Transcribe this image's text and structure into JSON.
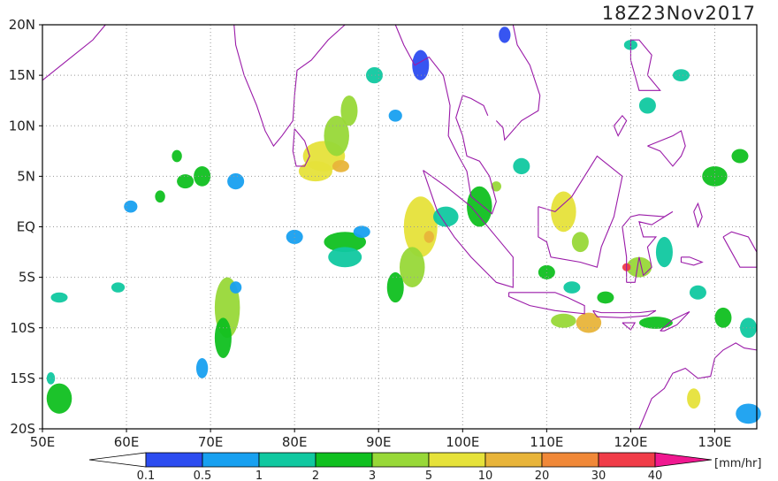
{
  "title": "18Z23Nov2017",
  "map": {
    "lat_labels": [
      "20N",
      "15N",
      "10N",
      "5N",
      "EQ",
      "5S",
      "10S",
      "15S",
      "20S"
    ],
    "lon_labels": [
      "50E",
      "60E",
      "70E",
      "80E",
      "90E",
      "100E",
      "110E",
      "120E",
      "130E"
    ]
  },
  "colorbar": {
    "labels": [
      "0.1",
      "0.5",
      "1",
      "2",
      "3",
      "5",
      "10",
      "20",
      "30",
      "40"
    ],
    "colors": [
      "#2c4cf0",
      "#18a0f0",
      "#10c8a0",
      "#10c020",
      "#98d838",
      "#e6e23a",
      "#e8b43a",
      "#f08838",
      "#f03c48"
    ],
    "under_color": "#ffffff",
    "over_color": "#f01890",
    "unit": "[mm/hr]"
  }
}
